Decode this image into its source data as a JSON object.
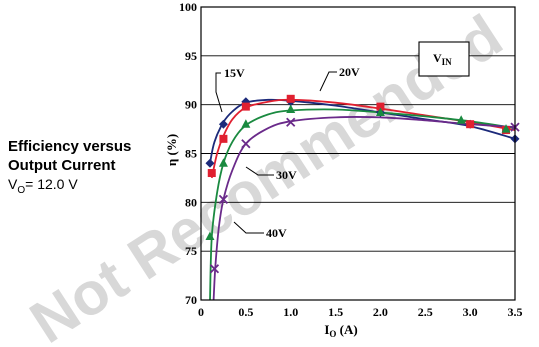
{
  "caption": {
    "line1": "Efficiency versus",
    "line2": "Output Current",
    "cond_prefix": "V",
    "cond_sub": "O",
    "cond_suffix": "= 12.0 V"
  },
  "watermark": "Not Recommended",
  "chart_data": {
    "type": "line",
    "title": "",
    "xlabel_main": "I",
    "xlabel_sub": "O",
    "xlabel_unit": " (A)",
    "ylabel": "η (%)",
    "xlim": [
      0,
      3.5
    ],
    "ylim": [
      70,
      100
    ],
    "x_ticks": [
      "0",
      "0.5",
      "1.0",
      "1.5",
      "2.0",
      "2.5",
      "3.0",
      "3.5"
    ],
    "x_tick_values": [
      0,
      0.5,
      1.0,
      1.5,
      2.0,
      2.5,
      3.0,
      3.5
    ],
    "y_ticks": [
      "70",
      "75",
      "80",
      "85",
      "90",
      "95",
      "100"
    ],
    "y_tick_values": [
      70,
      75,
      80,
      85,
      90,
      95,
      100
    ],
    "grid": "horizontal",
    "legend_title": {
      "main": "V",
      "sub": "IN"
    },
    "series": [
      {
        "name": "15V",
        "color": "#1c2a7a",
        "marker": "diamond",
        "points": [
          [
            0.1,
            84
          ],
          [
            0.25,
            88
          ],
          [
            0.5,
            90.3
          ],
          [
            1.0,
            90.3
          ],
          [
            2.0,
            89.2
          ],
          [
            3.0,
            88
          ],
          [
            3.5,
            86.5
          ]
        ],
        "curve": [
          [
            0.1,
            84
          ],
          [
            0.15,
            86.2
          ],
          [
            0.25,
            88.2
          ],
          [
            0.35,
            89.3
          ],
          [
            0.5,
            90.2
          ],
          [
            0.75,
            90.5
          ],
          [
            1.0,
            90.4
          ],
          [
            1.5,
            89.9
          ],
          [
            2.0,
            89.2
          ],
          [
            2.5,
            88.5
          ],
          [
            3.0,
            87.8
          ],
          [
            3.5,
            86.5
          ]
        ]
      },
      {
        "name": "20V",
        "color": "#e02030",
        "marker": "square",
        "points": [
          [
            0.12,
            83
          ],
          [
            0.25,
            86.5
          ],
          [
            0.5,
            89.8
          ],
          [
            1.0,
            90.6
          ],
          [
            2.0,
            89.8
          ],
          [
            3.0,
            88
          ],
          [
            3.4,
            87.4
          ]
        ],
        "curve": [
          [
            0.12,
            82.5
          ],
          [
            0.18,
            85
          ],
          [
            0.25,
            86.8
          ],
          [
            0.35,
            88.5
          ],
          [
            0.5,
            89.7
          ],
          [
            0.75,
            90.3
          ],
          [
            1.0,
            90.5
          ],
          [
            1.5,
            90.2
          ],
          [
            2.0,
            89.6
          ],
          [
            2.5,
            88.9
          ],
          [
            3.0,
            88.2
          ],
          [
            3.5,
            87.4
          ]
        ]
      },
      {
        "name": "30V",
        "color": "#1a8a40",
        "marker": "triangle",
        "points": [
          [
            0.1,
            76.5
          ],
          [
            0.25,
            84
          ],
          [
            0.5,
            88
          ],
          [
            1.0,
            89.5
          ],
          [
            2.0,
            89.2
          ],
          [
            2.9,
            88.4
          ],
          [
            3.4,
            87.5
          ]
        ],
        "curve": [
          [
            0.1,
            70
          ],
          [
            0.12,
            76.5
          ],
          [
            0.18,
            81
          ],
          [
            0.25,
            84
          ],
          [
            0.35,
            86.2
          ],
          [
            0.5,
            87.9
          ],
          [
            0.75,
            89
          ],
          [
            1.0,
            89.4
          ],
          [
            1.5,
            89.5
          ],
          [
            2.0,
            89.2
          ],
          [
            2.5,
            88.8
          ],
          [
            3.0,
            88.3
          ],
          [
            3.5,
            87.6
          ]
        ]
      },
      {
        "name": "40V",
        "color": "#6a2a8a",
        "marker": "x",
        "points": [
          [
            0.15,
            73.2
          ],
          [
            0.25,
            80.3
          ],
          [
            0.5,
            86
          ],
          [
            1.0,
            88.2
          ],
          [
            3.5,
            87.7
          ]
        ],
        "curve": [
          [
            0.14,
            70
          ],
          [
            0.16,
            73.5
          ],
          [
            0.2,
            77.5
          ],
          [
            0.25,
            80.3
          ],
          [
            0.35,
            83.3
          ],
          [
            0.5,
            86
          ],
          [
            0.75,
            87.6
          ],
          [
            1.0,
            88.3
          ],
          [
            1.5,
            88.7
          ],
          [
            2.0,
            88.7
          ],
          [
            2.5,
            88.4
          ],
          [
            3.0,
            88
          ],
          [
            3.5,
            87.7
          ]
        ]
      }
    ]
  }
}
